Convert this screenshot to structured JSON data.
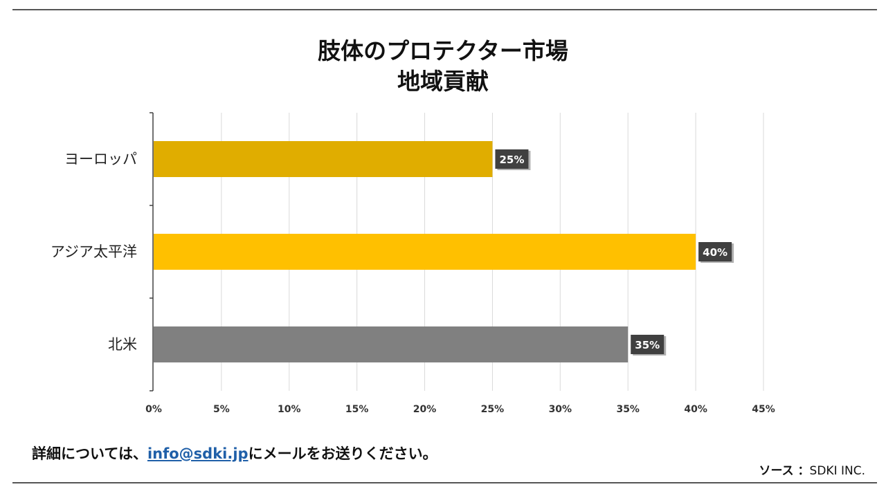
{
  "header": {
    "title_line1": "肢体のプロテクター市場",
    "title_line2": "地域貢献"
  },
  "chart_data": {
    "type": "bar",
    "orientation": "horizontal",
    "categories": [
      "ヨーロッパ",
      "アジア太平洋",
      "北米"
    ],
    "values": [
      25,
      40,
      35
    ],
    "value_labels": [
      "25%",
      "40%",
      "35%"
    ],
    "bar_colors": [
      "#E0AD00",
      "#FFC000",
      "#808080"
    ],
    "xlim": [
      0,
      45
    ],
    "xticks": [
      0,
      5,
      10,
      15,
      20,
      25,
      30,
      35,
      40,
      45
    ],
    "xtick_labels": [
      "0%",
      "5%",
      "10%",
      "15%",
      "20%",
      "25%",
      "30%",
      "35%",
      "40%",
      "45%"
    ],
    "grid": true,
    "legend": "none"
  },
  "footer": {
    "note_prefix": "詳細については、",
    "note_link": "info@sdki.jp",
    "note_suffix": "にメールをお送りください。",
    "source_label": "ソース ：",
    "source_value": "SDKI INC."
  },
  "colors": {
    "gridline": "#D9D9D9",
    "axis": "#404040",
    "label_box": "#404040"
  }
}
